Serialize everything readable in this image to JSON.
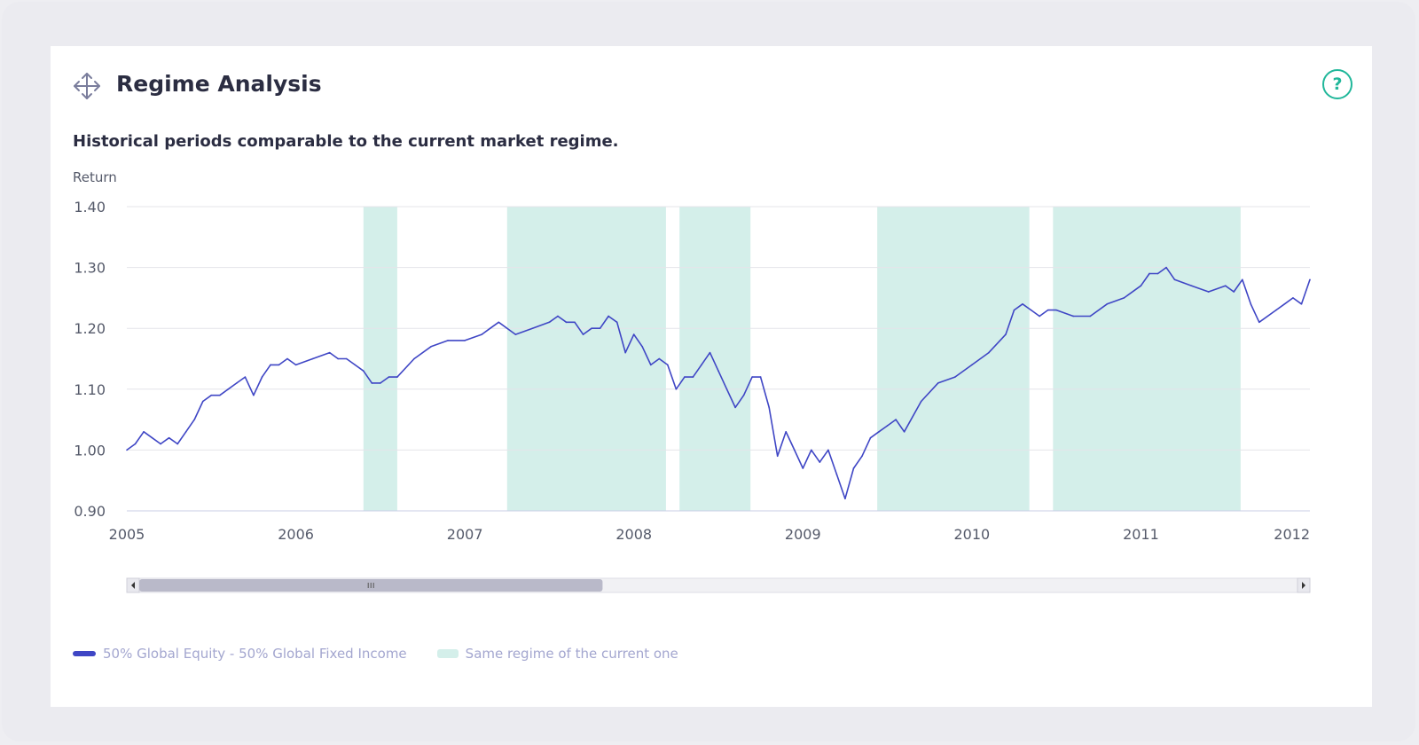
{
  "header": {
    "title": "Regime Analysis",
    "help_symbol": "?",
    "move_icon": "move-arrows-icon",
    "help_icon": "help-circle-icon"
  },
  "colors": {
    "series": "#3f46c5",
    "regime_band": "#d4efea",
    "help": "#20b79a",
    "scroll_thumb": "#b9b9c9"
  },
  "chart_data": {
    "type": "line",
    "title": "Historical periods comparable to the current market regime.",
    "ylabel": "Return",
    "xlabel": "",
    "ylim": [
      0.9,
      1.4
    ],
    "yticks": [
      "0.90",
      "1.00",
      "1.10",
      "1.20",
      "1.30",
      "1.40"
    ],
    "xlim": [
      2005.0,
      2012.0
    ],
    "xticks": [
      "2005",
      "2006",
      "2007",
      "2008",
      "2009",
      "2010",
      "2011",
      "2012"
    ],
    "grid": true,
    "legend": "bottom-left",
    "series": [
      {
        "name": "50% Global Equity - 50% Global Fixed Income",
        "x": [
          2005.0,
          2005.05,
          2005.1,
          2005.15,
          2005.2,
          2005.25,
          2005.3,
          2005.35,
          2005.4,
          2005.45,
          2005.5,
          2005.55,
          2005.6,
          2005.65,
          2005.7,
          2005.75,
          2005.8,
          2005.85,
          2005.9,
          2005.95,
          2006.0,
          2006.1,
          2006.2,
          2006.25,
          2006.3,
          2006.35,
          2006.4,
          2006.45,
          2006.5,
          2006.55,
          2006.6,
          2006.7,
          2006.8,
          2006.9,
          2007.0,
          2007.1,
          2007.15,
          2007.2,
          2007.3,
          2007.4,
          2007.5,
          2007.55,
          2007.6,
          2007.65,
          2007.7,
          2007.75,
          2007.8,
          2007.85,
          2007.9,
          2007.95,
          2008.0,
          2008.05,
          2008.1,
          2008.15,
          2008.2,
          2008.25,
          2008.3,
          2008.35,
          2008.4,
          2008.45,
          2008.5,
          2008.55,
          2008.6,
          2008.65,
          2008.7,
          2008.75,
          2008.8,
          2008.85,
          2008.9,
          2008.95,
          2009.0,
          2009.05,
          2009.1,
          2009.15,
          2009.2,
          2009.25,
          2009.3,
          2009.35,
          2009.4,
          2009.45,
          2009.5,
          2009.55,
          2009.6,
          2009.7,
          2009.8,
          2009.9,
          2010.0,
          2010.1,
          2010.2,
          2010.25,
          2010.3,
          2010.35,
          2010.4,
          2010.45,
          2010.5,
          2010.6,
          2010.7,
          2010.8,
          2010.9,
          2011.0,
          2011.05,
          2011.1,
          2011.15,
          2011.2,
          2011.3,
          2011.4,
          2011.5,
          2011.55,
          2011.6,
          2011.65,
          2011.7,
          2011.8,
          2011.85,
          2011.9,
          2011.95,
          2012.0
        ],
        "y": [
          1.0,
          1.01,
          1.03,
          1.02,
          1.01,
          1.02,
          1.01,
          1.03,
          1.05,
          1.08,
          1.09,
          1.09,
          1.1,
          1.11,
          1.12,
          1.09,
          1.12,
          1.14,
          1.14,
          1.15,
          1.14,
          1.15,
          1.16,
          1.15,
          1.15,
          1.14,
          1.13,
          1.11,
          1.11,
          1.12,
          1.12,
          1.15,
          1.17,
          1.18,
          1.18,
          1.19,
          1.2,
          1.21,
          1.19,
          1.2,
          1.21,
          1.22,
          1.21,
          1.21,
          1.19,
          1.2,
          1.2,
          1.22,
          1.21,
          1.16,
          1.19,
          1.17,
          1.14,
          1.15,
          1.14,
          1.1,
          1.12,
          1.12,
          1.14,
          1.16,
          1.13,
          1.1,
          1.07,
          1.09,
          1.12,
          1.12,
          1.07,
          0.99,
          1.03,
          1.0,
          0.97,
          1.0,
          0.98,
          1.0,
          0.96,
          0.92,
          0.97,
          0.99,
          1.02,
          1.03,
          1.04,
          1.05,
          1.03,
          1.08,
          1.11,
          1.12,
          1.14,
          1.16,
          1.19,
          1.23,
          1.24,
          1.23,
          1.22,
          1.23,
          1.23,
          1.22,
          1.22,
          1.24,
          1.25,
          1.27,
          1.29,
          1.29,
          1.3,
          1.28,
          1.27,
          1.26,
          1.27,
          1.26,
          1.28,
          1.24,
          1.21,
          1.23,
          1.24,
          1.25,
          1.24,
          1.28
        ]
      }
    ],
    "regime_bands": {
      "name": "Same regime of the current one",
      "ranges": [
        [
          2006.4,
          2006.6
        ],
        [
          2007.25,
          2008.19
        ],
        [
          2008.27,
          2008.69
        ],
        [
          2009.44,
          2010.34
        ],
        [
          2010.48,
          2011.59
        ]
      ]
    }
  },
  "scrollbar": {
    "position": 0.0,
    "visible_fraction": 0.4,
    "left_arrow": "scroll-left-icon",
    "right_arrow": "scroll-right-icon"
  }
}
